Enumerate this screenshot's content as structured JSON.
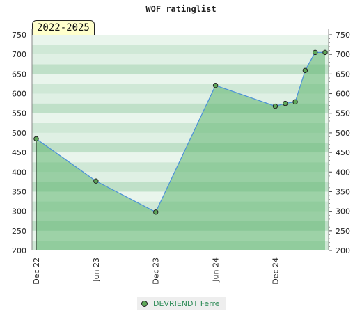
{
  "chart_data": {
    "type": "area",
    "title": "WOF ratinglist",
    "period": "2022-2025",
    "xlabel": "",
    "ylabel": "",
    "ylim": [
      200,
      750
    ],
    "yticks": [
      200,
      250,
      300,
      350,
      400,
      450,
      500,
      550,
      600,
      650,
      700,
      750
    ],
    "xticks": [
      {
        "label": "Dec 22",
        "date": "2022-12"
      },
      {
        "label": "Jun 23",
        "date": "2023-06"
      },
      {
        "label": "Dec 23",
        "date": "2023-12"
      },
      {
        "label": "Jun 24",
        "date": "2024-06"
      },
      {
        "label": "Dec 24",
        "date": "2024-12"
      }
    ],
    "series": [
      {
        "name": "DEVRIENDT Ferre",
        "color": "#5fa85a",
        "line_color": "#4a90d9",
        "points": [
          {
            "x": "2022-12",
            "y": 485
          },
          {
            "x": "2023-06",
            "y": 377
          },
          {
            "x": "2023-12",
            "y": 298
          },
          {
            "x": "2024-06",
            "y": 621
          },
          {
            "x": "2024-12",
            "y": 568
          },
          {
            "x": "2025-01",
            "y": 575
          },
          {
            "x": "2025-02",
            "y": 579
          },
          {
            "x": "2025-03",
            "y": 659
          },
          {
            "x": "2025-04",
            "y": 705
          },
          {
            "x": "2025-05",
            "y": 705
          }
        ]
      }
    ],
    "grid": true,
    "legend_position": "bottom-center"
  }
}
